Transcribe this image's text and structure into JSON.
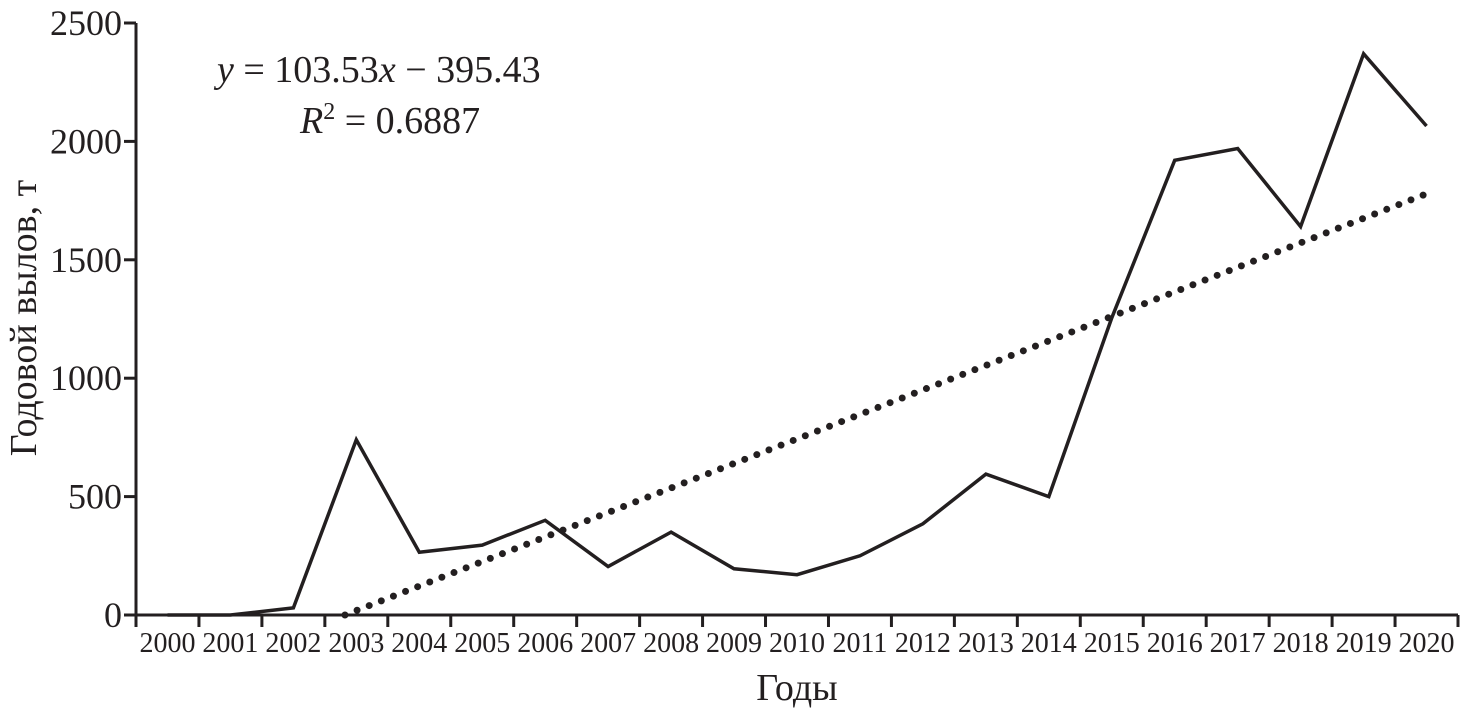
{
  "chart_data": {
    "type": "line",
    "xlabel": "Годы",
    "ylabel": "Годовой вылов, т",
    "ylim": [
      0,
      2500
    ],
    "yticks": [
      0,
      500,
      1000,
      1500,
      2000,
      2500
    ],
    "categories": [
      "2000",
      "2001",
      "2002",
      "2003",
      "2004",
      "2005",
      "2006",
      "2007",
      "2008",
      "2009",
      "2010",
      "2011",
      "2012",
      "2013",
      "2014",
      "2015",
      "2016",
      "2017",
      "2018",
      "2019",
      "2020"
    ],
    "series": [
      {
        "style": "solid",
        "color": "#231f20",
        "values": [
          0,
          0,
          30,
          740,
          265,
          295,
          400,
          205,
          350,
          195,
          170,
          250,
          385,
          595,
          500,
          1255,
          1920,
          1970,
          1640,
          2370,
          2065
        ]
      },
      {
        "style": "dotted",
        "color": "#231f20",
        "trendline": true,
        "slope": 103.53,
        "intercept": -395.43
      }
    ],
    "annotations": {
      "equation": "y = 103.53x − 395.43",
      "r_squared": "R2 = 0.6887"
    },
    "grid": false,
    "legend": "none"
  }
}
